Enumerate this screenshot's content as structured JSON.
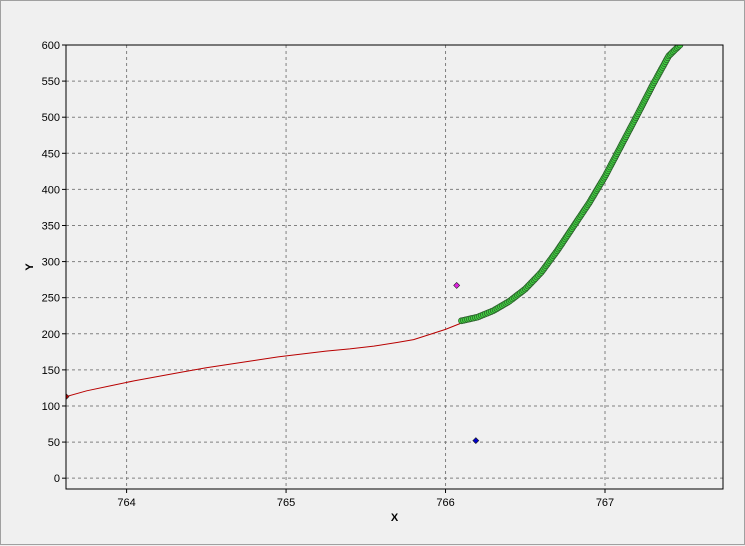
{
  "chart_data": {
    "type": "scatter",
    "xlabel": "X",
    "ylabel": "Y",
    "xlim": [
      763.62,
      767.74
    ],
    "ylim": [
      -15,
      600
    ],
    "x_ticks": [
      764,
      765,
      766,
      767
    ],
    "y_ticks": [
      0,
      50,
      100,
      150,
      200,
      250,
      300,
      350,
      400,
      450,
      500,
      550,
      600
    ],
    "grid": true,
    "series": [
      {
        "type": "line",
        "color": "#b80000",
        "points": [
          [
            763.62,
            113
          ],
          [
            763.75,
            121
          ],
          [
            763.9,
            128
          ],
          [
            764.05,
            135
          ],
          [
            764.2,
            141
          ],
          [
            764.35,
            147
          ],
          [
            764.5,
            153
          ],
          [
            764.65,
            158
          ],
          [
            764.8,
            163
          ],
          [
            764.95,
            168
          ],
          [
            765.1,
            172
          ],
          [
            765.25,
            176
          ],
          [
            765.4,
            179
          ],
          [
            765.55,
            183
          ],
          [
            765.7,
            188
          ],
          [
            765.8,
            192
          ],
          [
            765.9,
            199
          ],
          [
            766.0,
            206
          ],
          [
            766.1,
            215
          ]
        ]
      },
      {
        "type": "markers",
        "marker": "diamond",
        "color": "#c00000",
        "points": [
          [
            763.62,
            113
          ]
        ]
      },
      {
        "type": "markers",
        "marker": "diamond",
        "color": "#e020e0",
        "points": [
          [
            766.07,
            267
          ]
        ]
      },
      {
        "type": "markers",
        "marker": "diamond",
        "color": "#0000cc",
        "points": [
          [
            766.19,
            52
          ]
        ]
      },
      {
        "type": "markers",
        "marker": "circle",
        "color": "#40d040",
        "points": [
          [
            766.1,
            218
          ],
          [
            766.2,
            223
          ],
          [
            766.3,
            232
          ],
          [
            766.4,
            245
          ],
          [
            766.5,
            262
          ],
          [
            766.6,
            285
          ],
          [
            766.7,
            315
          ],
          [
            766.8,
            348
          ],
          [
            766.9,
            381
          ],
          [
            767.0,
            418
          ],
          [
            767.1,
            460
          ],
          [
            767.2,
            502
          ],
          [
            767.3,
            545
          ],
          [
            767.4,
            585
          ],
          [
            767.47,
            600
          ]
        ]
      }
    ]
  }
}
